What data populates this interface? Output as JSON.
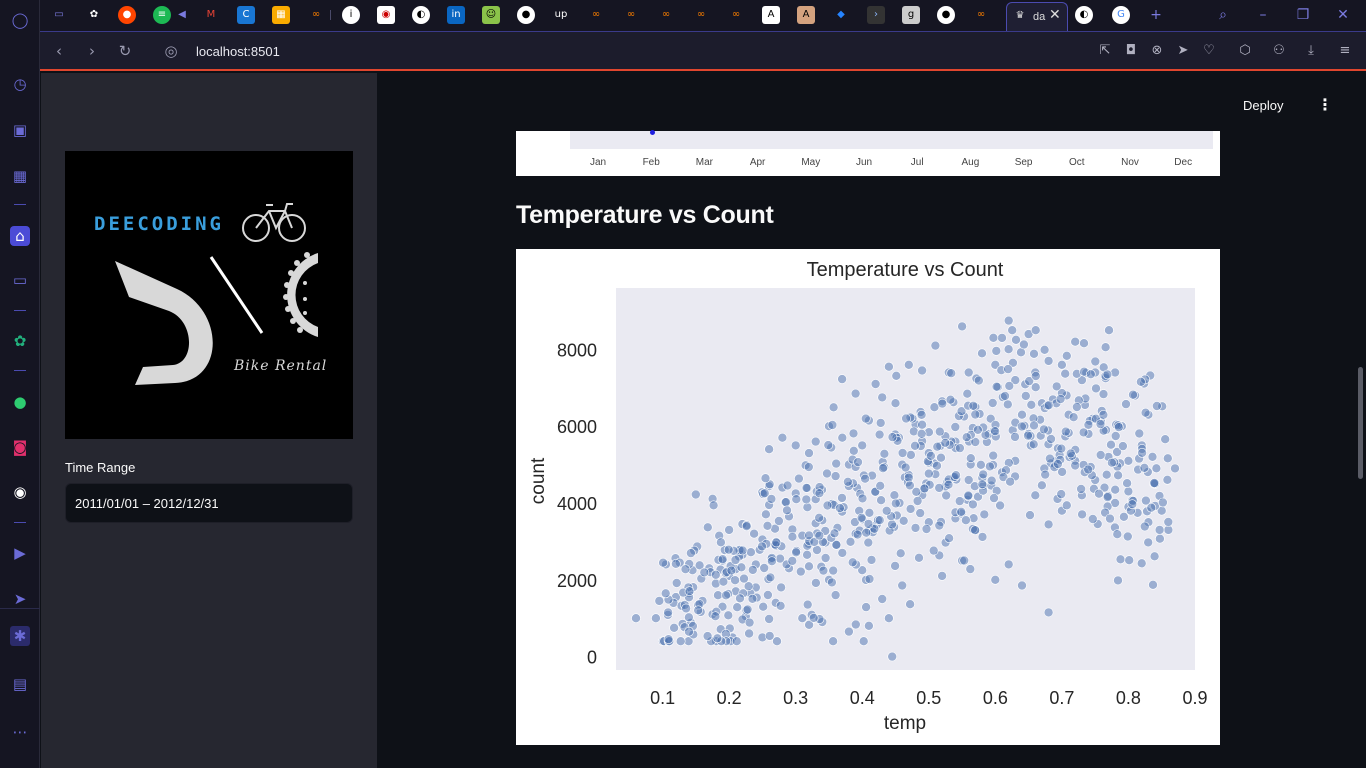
{
  "browser": {
    "url": "localhost:8501",
    "active_tab_title": "da"
  },
  "sidebar": {
    "logo": {
      "wordmark": "DEECODING",
      "tagline": "Bike Rental"
    },
    "time_range": {
      "label": "Time Range",
      "value": "2011/01/01 – 2012/12/31"
    }
  },
  "header": {
    "deploy_label": "Deploy"
  },
  "previous_chart": {
    "months": [
      "Jan",
      "Feb",
      "Mar",
      "Apr",
      "May",
      "Jun",
      "Jul",
      "Aug",
      "Sep",
      "Oct",
      "Nov",
      "Dec"
    ]
  },
  "section": {
    "title": "Temperature vs Count"
  },
  "colors": {
    "accent": "#e0462e",
    "point": "#4c72b0",
    "plot_bg": "#eaeaf2"
  },
  "chart_data": {
    "type": "scatter",
    "title": "Temperature vs Count",
    "xlabel": "temp",
    "ylabel": "count",
    "xlim": [
      0.03,
      0.9
    ],
    "ylim": [
      -350,
      9600
    ],
    "xticks": [
      0.1,
      0.2,
      0.3,
      0.4,
      0.5,
      0.6,
      0.7,
      0.8,
      0.9
    ],
    "yticks": [
      0,
      2000,
      4000,
      6000,
      8000
    ],
    "grid": false,
    "legend": "none",
    "n_points": 731,
    "points": [
      [
        0.06,
        1000
      ],
      [
        0.09,
        1000
      ],
      [
        0.095,
        1450
      ],
      [
        0.105,
        2400
      ],
      [
        0.12,
        1550
      ],
      [
        0.13,
        850
      ],
      [
        0.14,
        1650
      ],
      [
        0.145,
        2250
      ],
      [
        0.16,
        1450
      ],
      [
        0.17,
        2300
      ],
      [
        0.175,
        1100
      ],
      [
        0.18,
        1900
      ],
      [
        0.19,
        2500
      ],
      [
        0.19,
        1300
      ],
      [
        0.2,
        3300
      ],
      [
        0.2,
        2100
      ],
      [
        0.205,
        500
      ],
      [
        0.21,
        1700
      ],
      [
        0.22,
        3450
      ],
      [
        0.22,
        2650
      ],
      [
        0.225,
        1050
      ],
      [
        0.23,
        600
      ],
      [
        0.24,
        2400
      ],
      [
        0.24,
        1800
      ],
      [
        0.25,
        3050
      ],
      [
        0.25,
        500
      ],
      [
        0.26,
        3950
      ],
      [
        0.26,
        5400
      ],
      [
        0.27,
        2900
      ],
      [
        0.27,
        1400
      ],
      [
        0.28,
        5700
      ],
      [
        0.28,
        4400
      ],
      [
        0.29,
        3650
      ],
      [
        0.29,
        2300
      ],
      [
        0.3,
        5500
      ],
      [
        0.3,
        4250
      ],
      [
        0.31,
        3150
      ],
      [
        0.31,
        1000
      ],
      [
        0.32,
        5300
      ],
      [
        0.32,
        2350
      ],
      [
        0.33,
        5600
      ],
      [
        0.33,
        4100
      ],
      [
        0.34,
        3550
      ],
      [
        0.34,
        900
      ],
      [
        0.35,
        6000
      ],
      [
        0.35,
        2000
      ],
      [
        0.36,
        4700
      ],
      [
        0.36,
        1600
      ],
      [
        0.37,
        5700
      ],
      [
        0.37,
        2700
      ],
      [
        0.38,
        5000
      ],
      [
        0.38,
        650
      ],
      [
        0.39,
        6850
      ],
      [
        0.39,
        3200
      ],
      [
        0.4,
        5500
      ],
      [
        0.4,
        2250
      ],
      [
        0.41,
        6150
      ],
      [
        0.41,
        800
      ],
      [
        0.42,
        7100
      ],
      [
        0.42,
        4300
      ],
      [
        0.43,
        6750
      ],
      [
        0.43,
        1500
      ],
      [
        0.44,
        7550
      ],
      [
        0.44,
        1000
      ],
      [
        0.445,
        0
      ],
      [
        0.45,
        6600
      ],
      [
        0.46,
        5000
      ],
      [
        0.46,
        1850
      ],
      [
        0.47,
        7600
      ],
      [
        0.48,
        6050
      ],
      [
        0.48,
        3350
      ],
      [
        0.49,
        7450
      ],
      [
        0.5,
        5300
      ],
      [
        0.5,
        3500
      ],
      [
        0.51,
        8100
      ],
      [
        0.51,
        4750
      ],
      [
        0.52,
        6650
      ],
      [
        0.52,
        2100
      ],
      [
        0.53,
        7400
      ],
      [
        0.54,
        5600
      ],
      [
        0.54,
        3600
      ],
      [
        0.55,
        8600
      ],
      [
        0.55,
        2500
      ],
      [
        0.56,
        7400
      ],
      [
        0.56,
        4600
      ],
      [
        0.57,
        6500
      ],
      [
        0.57,
        3300
      ],
      [
        0.58,
        7900
      ],
      [
        0.59,
        5800
      ],
      [
        0.6,
        7600
      ],
      [
        0.6,
        2000
      ],
      [
        0.61,
        8300
      ],
      [
        0.61,
        4800
      ],
      [
        0.62,
        8750
      ],
      [
        0.62,
        2400
      ],
      [
        0.63,
        7200
      ],
      [
        0.63,
        5100
      ],
      [
        0.64,
        6300
      ],
      [
        0.64,
        1850
      ],
      [
        0.65,
        8400
      ],
      [
        0.65,
        5800
      ],
      [
        0.66,
        7400
      ],
      [
        0.66,
        4200
      ],
      [
        0.67,
        6600
      ],
      [
        0.68,
        7700
      ],
      [
        0.68,
        1150
      ],
      [
        0.69,
        5000
      ],
      [
        0.7,
        7600
      ],
      [
        0.7,
        3800
      ],
      [
        0.71,
        6300
      ],
      [
        0.72,
        8200
      ],
      [
        0.72,
        5100
      ],
      [
        0.73,
        7200
      ],
      [
        0.73,
        4200
      ],
      [
        0.74,
        5800
      ],
      [
        0.75,
        7400
      ],
      [
        0.75,
        4600
      ],
      [
        0.76,
        6400
      ],
      [
        0.77,
        5200
      ],
      [
        0.78,
        7400
      ],
      [
        0.78,
        4000
      ],
      [
        0.79,
        6000
      ],
      [
        0.8,
        5100
      ],
      [
        0.8,
        3900
      ],
      [
        0.81,
        6800
      ],
      [
        0.82,
        5500
      ],
      [
        0.83,
        6300
      ],
      [
        0.83,
        3500
      ],
      [
        0.84,
        4500
      ],
      [
        0.85,
        3800
      ],
      [
        0.86,
        3300
      ],
      [
        0.87,
        4900
      ]
    ]
  }
}
